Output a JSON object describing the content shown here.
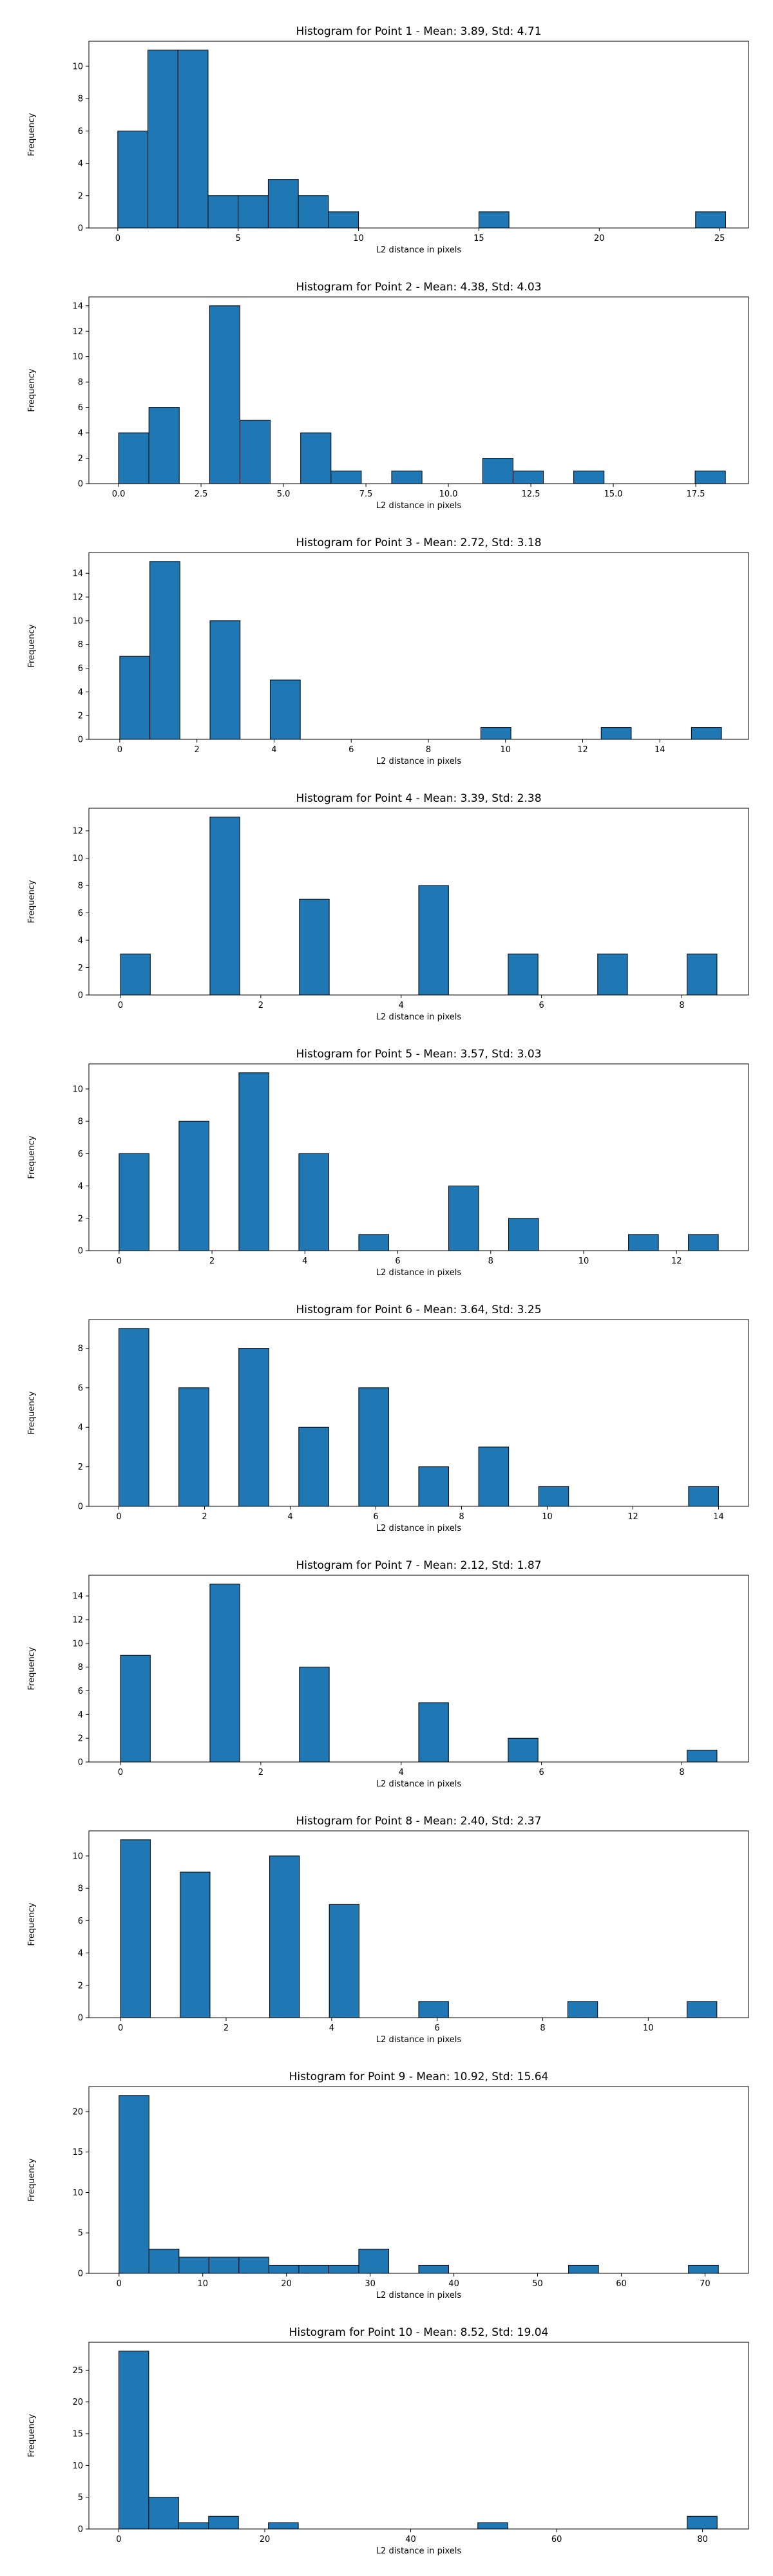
{
  "chart_data": [
    {
      "type": "bar",
      "title": "Histogram for Point 1 - Mean: 3.89, Std: 4.71",
      "xlabel": "L2 distance in pixels",
      "ylabel": "Frequency",
      "xlim": [
        -1.2,
        26.2
      ],
      "ylim": [
        0,
        11.55
      ],
      "xticks": [
        0,
        5,
        10,
        15,
        20,
        25
      ],
      "xtick_labels": [
        "0",
        "5",
        "10",
        "15",
        "20",
        "25"
      ],
      "yticks": [
        0,
        2,
        4,
        6,
        8,
        10
      ],
      "ytick_labels": [
        "0",
        "2",
        "4",
        "6",
        "8",
        "10"
      ],
      "bins": [
        {
          "start": 0.0,
          "end": 1.25,
          "count": 6
        },
        {
          "start": 1.25,
          "end": 2.5,
          "count": 11
        },
        {
          "start": 2.5,
          "end": 3.75,
          "count": 11
        },
        {
          "start": 3.75,
          "end": 5.0,
          "count": 2
        },
        {
          "start": 5.0,
          "end": 6.25,
          "count": 2
        },
        {
          "start": 6.25,
          "end": 7.5,
          "count": 3
        },
        {
          "start": 7.5,
          "end": 8.75,
          "count": 2
        },
        {
          "start": 8.75,
          "end": 10.0,
          "count": 1
        },
        {
          "start": 15.0,
          "end": 16.25,
          "count": 1
        },
        {
          "start": 24.0,
          "end": 25.25,
          "count": 1
        }
      ],
      "color": "#1f77b4"
    },
    {
      "type": "bar",
      "title": "Histogram for Point 2 - Mean: 4.38, Std: 4.03",
      "xlabel": "L2 distance in pixels",
      "ylabel": "Frequency",
      "xlim": [
        -0.9,
        19.1
      ],
      "ylim": [
        0,
        14.7
      ],
      "xticks": [
        0,
        2.5,
        5,
        7.5,
        10,
        12.5,
        15,
        17.5
      ],
      "xtick_labels": [
        "0.0",
        "2.5",
        "5.0",
        "7.5",
        "10.0",
        "12.5",
        "15.0",
        "17.5"
      ],
      "yticks": [
        0,
        2,
        4,
        6,
        8,
        10,
        12,
        14
      ],
      "ytick_labels": [
        "0",
        "2",
        "4",
        "6",
        "8",
        "10",
        "12",
        "14"
      ],
      "bins": [
        {
          "start": 0.0,
          "end": 0.92,
          "count": 4
        },
        {
          "start": 0.92,
          "end": 1.84,
          "count": 6
        },
        {
          "start": 2.76,
          "end": 3.68,
          "count": 14
        },
        {
          "start": 3.68,
          "end": 4.6,
          "count": 5
        },
        {
          "start": 5.52,
          "end": 6.44,
          "count": 4
        },
        {
          "start": 6.44,
          "end": 7.36,
          "count": 1
        },
        {
          "start": 8.28,
          "end": 9.2,
          "count": 1
        },
        {
          "start": 11.04,
          "end": 11.96,
          "count": 2
        },
        {
          "start": 11.96,
          "end": 12.88,
          "count": 1
        },
        {
          "start": 13.8,
          "end": 14.72,
          "count": 1
        },
        {
          "start": 17.48,
          "end": 18.4,
          "count": 1
        }
      ],
      "color": "#1f77b4"
    },
    {
      "type": "bar",
      "title": "Histogram for Point 3 - Mean: 2.72, Std: 3.18",
      "xlabel": "L2 distance in pixels",
      "ylabel": "Frequency",
      "xlim": [
        -0.8,
        16.3
      ],
      "ylim": [
        0,
        15.75
      ],
      "xticks": [
        0,
        2,
        4,
        6,
        8,
        10,
        12,
        14
      ],
      "xtick_labels": [
        "0",
        "2",
        "4",
        "6",
        "8",
        "10",
        "12",
        "14"
      ],
      "yticks": [
        0,
        2,
        4,
        6,
        8,
        10,
        12,
        14
      ],
      "ytick_labels": [
        "0",
        "2",
        "4",
        "6",
        "8",
        "10",
        "12",
        "14"
      ],
      "bins": [
        {
          "start": 0.0,
          "end": 0.78,
          "count": 7
        },
        {
          "start": 0.78,
          "end": 1.56,
          "count": 15
        },
        {
          "start": 2.34,
          "end": 3.12,
          "count": 10
        },
        {
          "start": 3.9,
          "end": 4.68,
          "count": 5
        },
        {
          "start": 9.36,
          "end": 10.14,
          "count": 1
        },
        {
          "start": 12.48,
          "end": 13.26,
          "count": 1
        },
        {
          "start": 14.82,
          "end": 15.6,
          "count": 1
        }
      ],
      "color": "#1f77b4"
    },
    {
      "type": "bar",
      "title": "Histogram for Point 4 - Mean: 3.39, Std: 2.38",
      "xlabel": "L2 distance in pixels",
      "ylabel": "Frequency",
      "xlim": [
        -0.45,
        8.95
      ],
      "ylim": [
        0,
        13.65
      ],
      "xticks": [
        0,
        2,
        4,
        6,
        8
      ],
      "xtick_labels": [
        "0",
        "2",
        "4",
        "6",
        "8"
      ],
      "yticks": [
        0,
        2,
        4,
        6,
        8,
        10,
        12
      ],
      "ytick_labels": [
        "0",
        "2",
        "4",
        "6",
        "8",
        "10",
        "12"
      ],
      "bins": [
        {
          "start": 0.0,
          "end": 0.425,
          "count": 3
        },
        {
          "start": 1.275,
          "end": 1.7,
          "count": 13
        },
        {
          "start": 2.55,
          "end": 2.975,
          "count": 7
        },
        {
          "start": 4.25,
          "end": 4.675,
          "count": 8
        },
        {
          "start": 5.525,
          "end": 5.95,
          "count": 3
        },
        {
          "start": 6.8,
          "end": 7.225,
          "count": 3
        },
        {
          "start": 8.075,
          "end": 8.5,
          "count": 3
        }
      ],
      "color": "#1f77b4"
    },
    {
      "type": "bar",
      "title": "Histogram for Point 5 - Mean: 3.57, Std: 3.03",
      "xlabel": "L2 distance in pixels",
      "ylabel": "Frequency",
      "xlim": [
        -0.65,
        13.55
      ],
      "ylim": [
        0,
        11.55
      ],
      "xticks": [
        0,
        2,
        4,
        6,
        8,
        10,
        12
      ],
      "xtick_labels": [
        "0",
        "2",
        "4",
        "6",
        "8",
        "10",
        "12"
      ],
      "yticks": [
        0,
        2,
        4,
        6,
        8,
        10
      ],
      "ytick_labels": [
        "0",
        "2",
        "4",
        "6",
        "8",
        "10"
      ],
      "bins": [
        {
          "start": 0.0,
          "end": 0.645,
          "count": 6
        },
        {
          "start": 1.29,
          "end": 1.935,
          "count": 8
        },
        {
          "start": 2.58,
          "end": 3.225,
          "count": 11
        },
        {
          "start": 3.87,
          "end": 4.515,
          "count": 6
        },
        {
          "start": 5.16,
          "end": 5.805,
          "count": 1
        },
        {
          "start": 7.095,
          "end": 7.74,
          "count": 4
        },
        {
          "start": 8.385,
          "end": 9.03,
          "count": 2
        },
        {
          "start": 10.965,
          "end": 11.61,
          "count": 1
        },
        {
          "start": 12.255,
          "end": 12.9,
          "count": 1
        }
      ],
      "color": "#1f77b4"
    },
    {
      "type": "bar",
      "title": "Histogram for Point 6 - Mean: 3.64, Std: 3.25",
      "xlabel": "L2 distance in pixels",
      "ylabel": "Frequency",
      "xlim": [
        -0.7,
        14.7
      ],
      "ylim": [
        0,
        9.45
      ],
      "xticks": [
        0,
        2,
        4,
        6,
        8,
        10,
        12,
        14
      ],
      "xtick_labels": [
        "0",
        "2",
        "4",
        "6",
        "8",
        "10",
        "12",
        "14"
      ],
      "yticks": [
        0,
        2,
        4,
        6,
        8
      ],
      "ytick_labels": [
        "0",
        "2",
        "4",
        "6",
        "8"
      ],
      "bins": [
        {
          "start": 0.0,
          "end": 0.7,
          "count": 9
        },
        {
          "start": 1.4,
          "end": 2.1,
          "count": 6
        },
        {
          "start": 2.8,
          "end": 3.5,
          "count": 8
        },
        {
          "start": 4.2,
          "end": 4.9,
          "count": 4
        },
        {
          "start": 5.6,
          "end": 6.3,
          "count": 6
        },
        {
          "start": 7.0,
          "end": 7.7,
          "count": 2
        },
        {
          "start": 8.4,
          "end": 9.1,
          "count": 3
        },
        {
          "start": 9.8,
          "end": 10.5,
          "count": 1
        },
        {
          "start": 13.3,
          "end": 14.0,
          "count": 1
        }
      ],
      "color": "#1f77b4"
    },
    {
      "type": "bar",
      "title": "Histogram for Point 7 - Mean: 2.12, Std: 1.87",
      "xlabel": "L2 distance in pixels",
      "ylabel": "Frequency",
      "xlim": [
        -0.45,
        8.95
      ],
      "ylim": [
        0,
        15.75
      ],
      "xticks": [
        0,
        2,
        4,
        6,
        8
      ],
      "xtick_labels": [
        "0",
        "2",
        "4",
        "6",
        "8"
      ],
      "yticks": [
        0,
        2,
        4,
        6,
        8,
        10,
        12,
        14
      ],
      "ytick_labels": [
        "0",
        "2",
        "4",
        "6",
        "8",
        "10",
        "12",
        "14"
      ],
      "bins": [
        {
          "start": 0.0,
          "end": 0.425,
          "count": 9
        },
        {
          "start": 1.275,
          "end": 1.7,
          "count": 15
        },
        {
          "start": 2.55,
          "end": 2.975,
          "count": 8
        },
        {
          "start": 4.25,
          "end": 4.675,
          "count": 5
        },
        {
          "start": 5.525,
          "end": 5.95,
          "count": 2
        },
        {
          "start": 8.075,
          "end": 8.5,
          "count": 1
        }
      ],
      "color": "#1f77b4"
    },
    {
      "type": "bar",
      "title": "Histogram for Point 8 - Mean: 2.40, Std: 2.37",
      "xlabel": "L2 distance in pixels",
      "ylabel": "Frequency",
      "xlim": [
        -0.6,
        11.9
      ],
      "ylim": [
        0,
        11.55
      ],
      "xticks": [
        0,
        2,
        4,
        6,
        8,
        10
      ],
      "xtick_labels": [
        "0",
        "2",
        "4",
        "6",
        "8",
        "10"
      ],
      "yticks": [
        0,
        2,
        4,
        6,
        8,
        10
      ],
      "ytick_labels": [
        "0",
        "2",
        "4",
        "6",
        "8",
        "10"
      ],
      "bins": [
        {
          "start": 0.0,
          "end": 0.565,
          "count": 11
        },
        {
          "start": 1.13,
          "end": 1.695,
          "count": 9
        },
        {
          "start": 2.825,
          "end": 3.39,
          "count": 10
        },
        {
          "start": 3.955,
          "end": 4.52,
          "count": 7
        },
        {
          "start": 5.65,
          "end": 6.215,
          "count": 1
        },
        {
          "start": 8.475,
          "end": 9.04,
          "count": 1
        },
        {
          "start": 10.735,
          "end": 11.3,
          "count": 1
        }
      ],
      "color": "#1f77b4"
    },
    {
      "type": "bar",
      "title": "Histogram for Point 9 - Mean: 10.92, Std: 15.64",
      "xlabel": "L2 distance in pixels",
      "ylabel": "Frequency",
      "xlim": [
        -3.6,
        75.2
      ],
      "ylim": [
        0,
        23.1
      ],
      "xticks": [
        0,
        10,
        20,
        30,
        40,
        50,
        60,
        70
      ],
      "xtick_labels": [
        "0",
        "10",
        "20",
        "30",
        "40",
        "50",
        "60",
        "70"
      ],
      "yticks": [
        0,
        5,
        10,
        15,
        20
      ],
      "ytick_labels": [
        "0",
        "5",
        "10",
        "15",
        "20"
      ],
      "bins": [
        {
          "start": 0.0,
          "end": 3.58,
          "count": 22
        },
        {
          "start": 3.58,
          "end": 7.16,
          "count": 3
        },
        {
          "start": 7.16,
          "end": 10.74,
          "count": 2
        },
        {
          "start": 10.74,
          "end": 14.32,
          "count": 2
        },
        {
          "start": 14.32,
          "end": 17.9,
          "count": 2
        },
        {
          "start": 17.9,
          "end": 21.48,
          "count": 1
        },
        {
          "start": 21.48,
          "end": 25.06,
          "count": 1
        },
        {
          "start": 25.06,
          "end": 28.64,
          "count": 1
        },
        {
          "start": 28.64,
          "end": 32.22,
          "count": 3
        },
        {
          "start": 35.8,
          "end": 39.38,
          "count": 1
        },
        {
          "start": 53.7,
          "end": 57.28,
          "count": 1
        },
        {
          "start": 68.02,
          "end": 71.6,
          "count": 1
        }
      ],
      "color": "#1f77b4"
    },
    {
      "type": "bar",
      "title": "Histogram for Point 10 - Mean: 8.52, Std: 19.04",
      "xlabel": "L2 distance in pixels",
      "ylabel": "Frequency",
      "xlim": [
        -4.1,
        86.3
      ],
      "ylim": [
        0,
        29.4
      ],
      "xticks": [
        0,
        20,
        40,
        60,
        80
      ],
      "xtick_labels": [
        "0",
        "20",
        "40",
        "60",
        "80"
      ],
      "yticks": [
        0,
        5,
        10,
        15,
        20,
        25
      ],
      "ytick_labels": [
        "0",
        "5",
        "10",
        "15",
        "20",
        "25"
      ],
      "bins": [
        {
          "start": 0.0,
          "end": 4.1,
          "count": 28
        },
        {
          "start": 4.1,
          "end": 8.2,
          "count": 5
        },
        {
          "start": 8.2,
          "end": 12.3,
          "count": 1
        },
        {
          "start": 12.3,
          "end": 16.4,
          "count": 2
        },
        {
          "start": 20.5,
          "end": 24.6,
          "count": 1
        },
        {
          "start": 49.2,
          "end": 53.3,
          "count": 1
        },
        {
          "start": 77.9,
          "end": 82.0,
          "count": 2
        }
      ],
      "color": "#1f77b4"
    }
  ]
}
